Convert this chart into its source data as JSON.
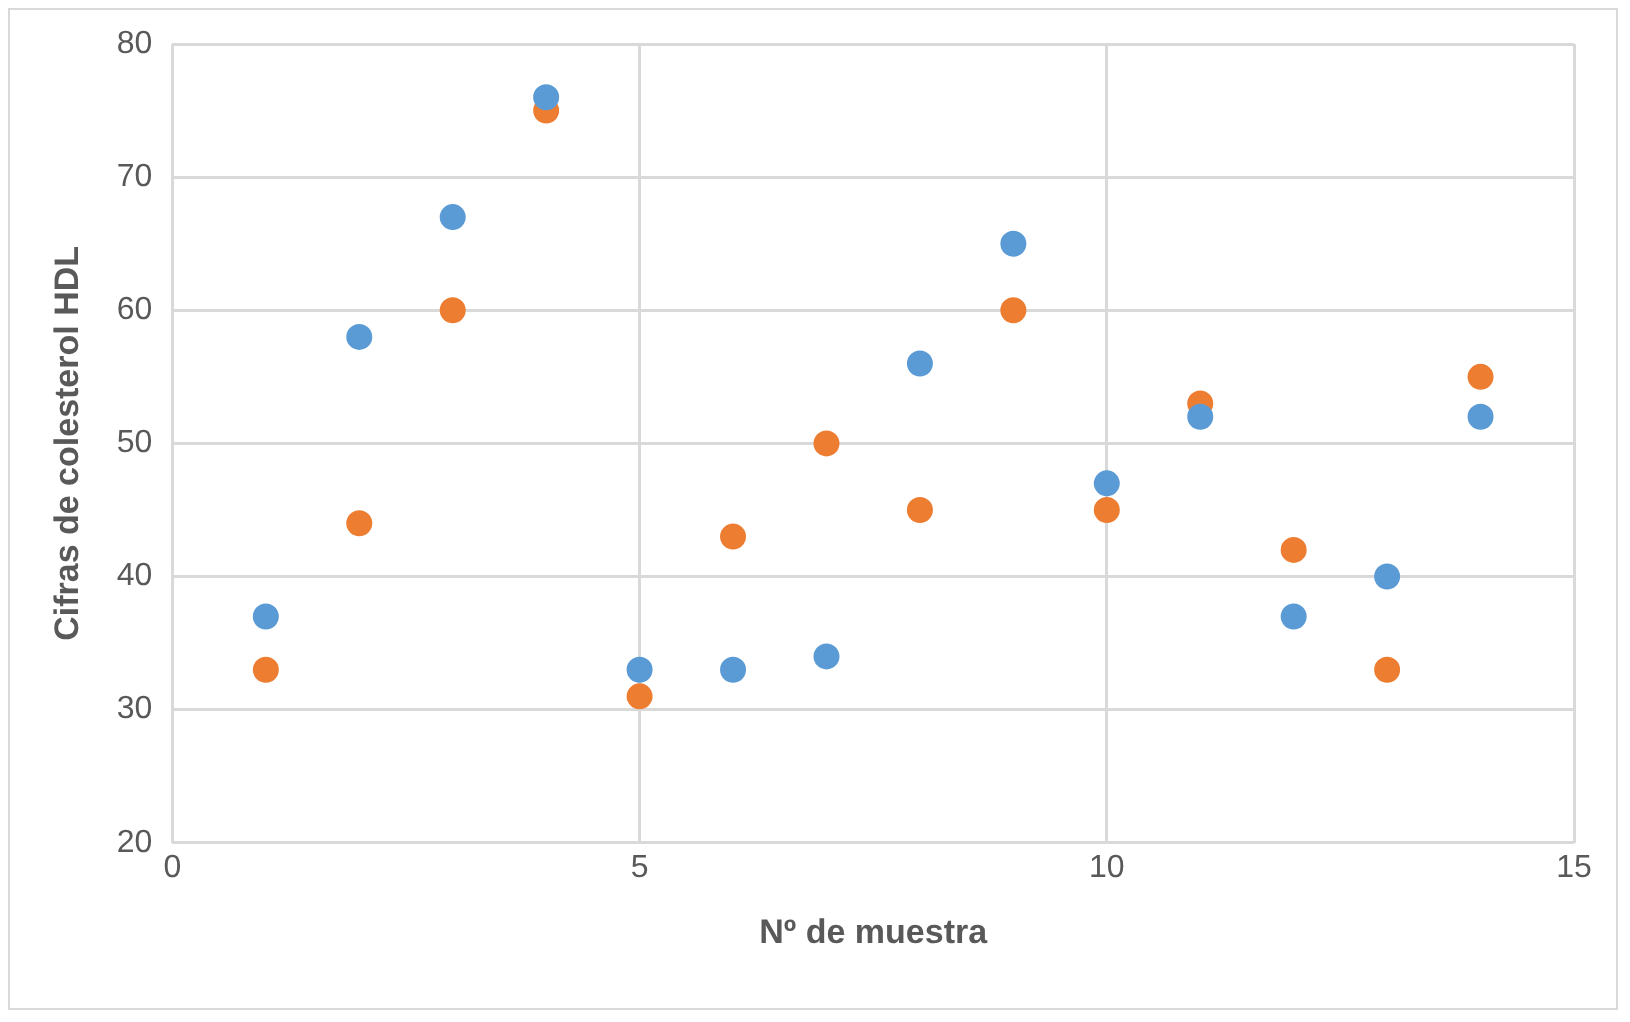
{
  "chart_data": {
    "type": "scatter",
    "xlabel": "Nº de muestra",
    "ylabel": "Cifras de colesterol HDL",
    "x": [
      1,
      2,
      3,
      4,
      5,
      6,
      7,
      8,
      9,
      10,
      11,
      12,
      13,
      14
    ],
    "series": [
      {
        "color": "#5b9bd5",
        "values": [
          37,
          58,
          67,
          76,
          33,
          33,
          34,
          56,
          65,
          47,
          52,
          37,
          40,
          52
        ]
      },
      {
        "color": "#ed7d31",
        "values": [
          33,
          44,
          60,
          75,
          31,
          43,
          50,
          45,
          60,
          45,
          53,
          42,
          33,
          55
        ]
      }
    ],
    "xlim": [
      0,
      15
    ],
    "xticks": [
      0,
      5,
      10,
      15
    ],
    "ylim": [
      20,
      80
    ],
    "yticks": [
      20,
      30,
      40,
      50,
      60,
      70,
      80
    ],
    "grid": true,
    "legend": false,
    "marker": "circle"
  }
}
